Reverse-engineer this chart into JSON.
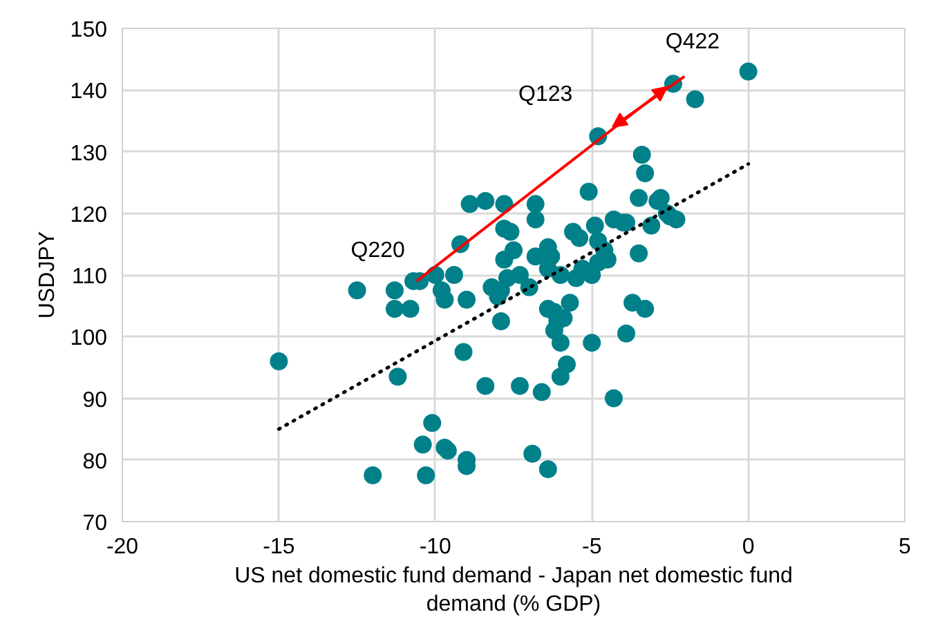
{
  "chart_data": {
    "type": "scatter",
    "xlabel": "US net domestic fund demand - Japan net domestic fund demand (% GDP)",
    "ylabel": "USDJPY",
    "xlim": [
      -20,
      5
    ],
    "ylim": [
      70,
      150
    ],
    "xticks": [
      -20,
      -15,
      -10,
      -5,
      0,
      5
    ],
    "yticks": [
      70,
      80,
      90,
      100,
      110,
      120,
      130,
      140,
      150
    ],
    "grid": true,
    "series": [
      {
        "color": "#00818a",
        "marker": "circle",
        "x": [
          -15.0,
          -12.5,
          -11.3,
          -11.3,
          -10.8,
          -10.7,
          -10.5,
          -11.2,
          -10.0,
          -9.8,
          -9.7,
          -10.1,
          -10.4,
          -9.7,
          -9.6,
          -10.3,
          -12.0,
          -9.0,
          -9.0,
          -9.2,
          -8.9,
          -8.4,
          -7.8,
          -9.4,
          -9.0,
          -9.1,
          -8.4,
          -7.3,
          -6.6,
          -6.0,
          -6.9,
          -6.4,
          -4.3,
          -7.8,
          -7.6,
          -7.8,
          -7.5,
          -6.8,
          -6.8,
          -6.8,
          -8.2,
          -8.0,
          -7.9,
          -7.7,
          -7.3,
          -7.0,
          -6.4,
          -6.3,
          -6.4,
          -6.0,
          -6.2,
          -5.9,
          -5.7,
          -5.5,
          -5.3,
          -5.0,
          -4.8,
          -4.6,
          -4.9,
          -6.2,
          -6.0,
          -5.8,
          -6.4,
          -6.1,
          -5.6,
          -5.4,
          -4.8,
          -4.5,
          -5.1,
          -3.4,
          -3.5,
          -2.8,
          -4.8,
          -2.4,
          -1.7,
          0.0,
          -3.5,
          -3.3,
          -3.9,
          -3.7,
          -4.0,
          -4.3,
          -3.1,
          -2.6,
          -2.5,
          -2.3,
          -2.9,
          -3.3,
          -5.0,
          -3.9,
          -7.9
        ],
        "values": [
          96.0,
          107.5,
          107.5,
          104.5,
          104.5,
          109.0,
          109.0,
          93.5,
          110.0,
          107.5,
          106.0,
          86.0,
          82.5,
          82.0,
          81.5,
          77.5,
          77.5,
          80.0,
          79.0,
          115.0,
          121.5,
          122.0,
          121.5,
          110.0,
          106.0,
          97.5,
          92.0,
          92.0,
          91.0,
          93.5,
          81.0,
          78.5,
          90.0,
          117.5,
          117.0,
          112.5,
          114.0,
          121.5,
          119.0,
          113.0,
          108.0,
          106.5,
          107.5,
          109.5,
          110.0,
          108.0,
          114.5,
          113.0,
          111.0,
          110.0,
          104.0,
          103.0,
          105.5,
          109.5,
          111.0,
          110.0,
          115.5,
          114.0,
          118.0,
          101.0,
          99.0,
          95.5,
          104.5,
          102.5,
          117.0,
          116.0,
          112.0,
          112.5,
          123.5,
          129.5,
          122.5,
          122.5,
          132.5,
          141.0,
          138.5,
          143.0,
          113.5,
          104.5,
          100.5,
          105.5,
          118.5,
          119.0,
          118.0,
          120.0,
          119.5,
          119.0,
          122.0,
          126.5,
          99.0,
          118.5,
          102.5
        ]
      },
      {
        "type": "line",
        "color": "#000000",
        "line_style": "dotted",
        "marker": "none",
        "x": [
          -15,
          0
        ],
        "values": [
          85,
          128
        ]
      }
    ],
    "annotations": [
      {
        "text": "Q220",
        "x": -10.6,
        "y": 109
      },
      {
        "text": "Q123",
        "x": -4.8,
        "y": 132.5
      },
      {
        "text": "Q422",
        "x": -2.4,
        "y": 141
      }
    ]
  }
}
